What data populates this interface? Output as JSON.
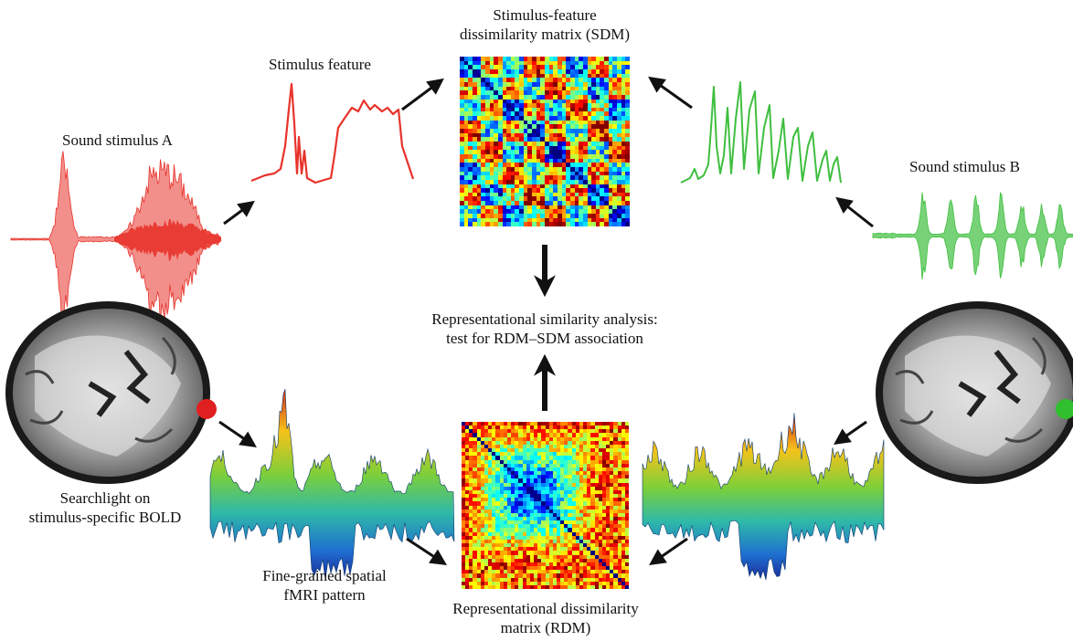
{
  "labels": {
    "sound_a": "Sound stimulus A",
    "sound_b": "Sound stimulus B",
    "stim_feature": "Stimulus feature",
    "sdm_line1": "Stimulus-feature",
    "sdm_line2": "dissimilarity matrix (SDM)",
    "rsa_line1": "Representational similarity analysis:",
    "rsa_line2": "test for RDM–SDM association",
    "search_line1": "Searchlight on",
    "search_line2": "stimulus-specific BOLD",
    "fine_line1": "Fine-grained spatial",
    "fine_line2": "fMRI pattern",
    "rdm_line1": "Representational dissimilarity",
    "rdm_line2": "matrix (RDM)"
  },
  "colors": {
    "stimulus_a": "#e8332b",
    "stimulus_b": "#3fbf3f",
    "arrow": "#111111",
    "searchlight_a": "#e02020",
    "searchlight_b": "#2fbf2f"
  },
  "icons": [
    "brain-slice-image",
    "waveform-image",
    "surface-plot-image",
    "matrix-heatmap-image"
  ]
}
